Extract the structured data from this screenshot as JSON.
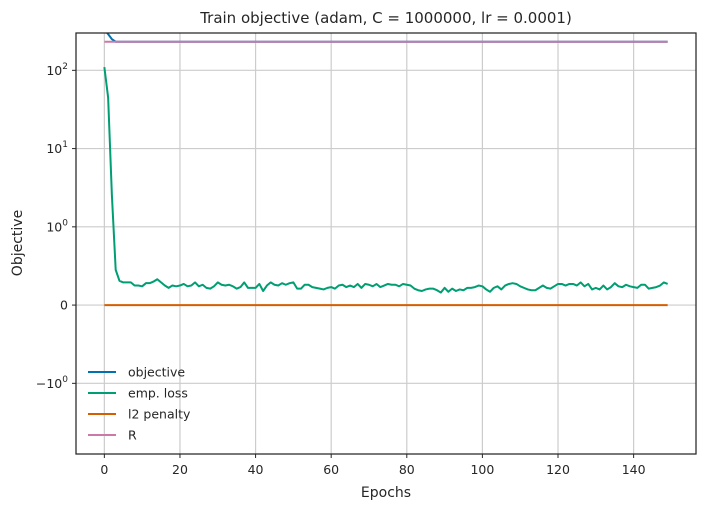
{
  "chart_data": {
    "type": "line",
    "title": "Train objective (adam, C = 1000000, lr = 0.0001)",
    "xlabel": "Epochs",
    "ylabel": "Objective",
    "yscale": "symlog",
    "xlim": [
      -7.5,
      156.5
    ],
    "ylim": [
      -8,
      300
    ],
    "grid": true,
    "legend_position": "lower-left",
    "x_ticks": [
      0,
      20,
      40,
      60,
      80,
      100,
      120,
      140
    ],
    "x_tick_labels": [
      "0",
      "20",
      "40",
      "60",
      "80",
      "100",
      "120",
      "140"
    ],
    "y_ticks": [
      -1,
      0,
      1,
      10,
      100
    ],
    "y_tick_labels": [
      {
        "base": "−",
        "main": "10",
        "exp": "0"
      },
      {
        "base": "",
        "main": "0",
        "exp": ""
      },
      {
        "base": "",
        "main": "10",
        "exp": "0"
      },
      {
        "base": "",
        "main": "10",
        "exp": "1"
      },
      {
        "base": "",
        "main": "10",
        "exp": "2"
      }
    ],
    "series": [
      {
        "name": "objective",
        "color": "#0072b2",
        "x": [
          0,
          1,
          2,
          3,
          149
        ],
        "y": [
          330,
          290,
          250,
          232,
          232
        ]
      },
      {
        "name": "emp. loss",
        "color": "#009e73",
        "x": [
          0,
          1,
          2,
          3,
          4,
          5,
          6,
          7,
          8,
          9,
          10,
          11,
          12,
          13,
          14,
          15,
          16,
          17,
          18,
          19,
          20,
          21,
          22,
          23,
          24,
          25,
          26,
          27,
          28,
          29,
          30,
          31,
          32,
          33,
          34,
          35,
          36,
          37,
          38,
          39,
          40,
          41,
          42,
          43,
          44,
          45,
          46,
          47,
          48,
          49,
          50,
          51,
          52,
          53,
          54,
          55,
          56,
          57,
          58,
          59,
          60,
          61,
          62,
          63,
          64,
          65,
          66,
          67,
          68,
          69,
          70,
          71,
          72,
          73,
          74,
          75,
          76,
          77,
          78,
          79,
          80,
          81,
          82,
          83,
          84,
          85,
          86,
          87,
          88,
          89,
          90,
          91,
          92,
          93,
          94,
          95,
          96,
          97,
          98,
          99,
          100,
          101,
          102,
          103,
          104,
          105,
          106,
          107,
          108,
          109,
          110,
          111,
          112,
          113,
          114,
          115,
          116,
          117,
          118,
          119,
          120,
          121,
          122,
          123,
          124,
          125,
          126,
          127,
          128,
          129,
          130,
          131,
          132,
          133,
          134,
          135,
          136,
          137,
          138,
          139,
          140,
          141,
          142,
          143,
          144,
          145,
          146,
          147,
          148,
          149
        ],
        "y": [
          110,
          45,
          2.5,
          0.45,
          0.31,
          0.29,
          0.29,
          0.29,
          0.25,
          0.25,
          0.24,
          0.28,
          0.28,
          0.3,
          0.33,
          0.29,
          0.25,
          0.22,
          0.25,
          0.24,
          0.25,
          0.27,
          0.24,
          0.25,
          0.29,
          0.24,
          0.26,
          0.22,
          0.21,
          0.24,
          0.29,
          0.26,
          0.25,
          0.26,
          0.24,
          0.21,
          0.23,
          0.29,
          0.22,
          0.22,
          0.22,
          0.27,
          0.18,
          0.25,
          0.29,
          0.26,
          0.25,
          0.28,
          0.26,
          0.28,
          0.29,
          0.21,
          0.21,
          0.26,
          0.26,
          0.23,
          0.22,
          0.21,
          0.2,
          0.22,
          0.23,
          0.21,
          0.25,
          0.26,
          0.23,
          0.25,
          0.23,
          0.27,
          0.22,
          0.27,
          0.26,
          0.24,
          0.27,
          0.23,
          0.25,
          0.27,
          0.26,
          0.26,
          0.24,
          0.27,
          0.26,
          0.25,
          0.21,
          0.19,
          0.18,
          0.2,
          0.21,
          0.21,
          0.19,
          0.16,
          0.22,
          0.17,
          0.21,
          0.18,
          0.2,
          0.19,
          0.22,
          0.22,
          0.23,
          0.25,
          0.24,
          0.2,
          0.17,
          0.22,
          0.24,
          0.2,
          0.25,
          0.27,
          0.28,
          0.27,
          0.24,
          0.22,
          0.2,
          0.19,
          0.19,
          0.22,
          0.25,
          0.22,
          0.21,
          0.24,
          0.27,
          0.27,
          0.25,
          0.27,
          0.27,
          0.25,
          0.29,
          0.24,
          0.27,
          0.2,
          0.22,
          0.2,
          0.25,
          0.2,
          0.23,
          0.28,
          0.24,
          0.23,
          0.26,
          0.24,
          0.23,
          0.22,
          0.26,
          0.26,
          0.21,
          0.22,
          0.23,
          0.25,
          0.29,
          0.27
        ]
      },
      {
        "name": "l2 penalty",
        "color": "#d55e00",
        "x": [
          0,
          149
        ],
        "y": [
          0,
          0
        ]
      },
      {
        "name": "R",
        "color": "#cc79a7",
        "x": [
          0,
          149
        ],
        "y": [
          232,
          232
        ]
      }
    ]
  }
}
